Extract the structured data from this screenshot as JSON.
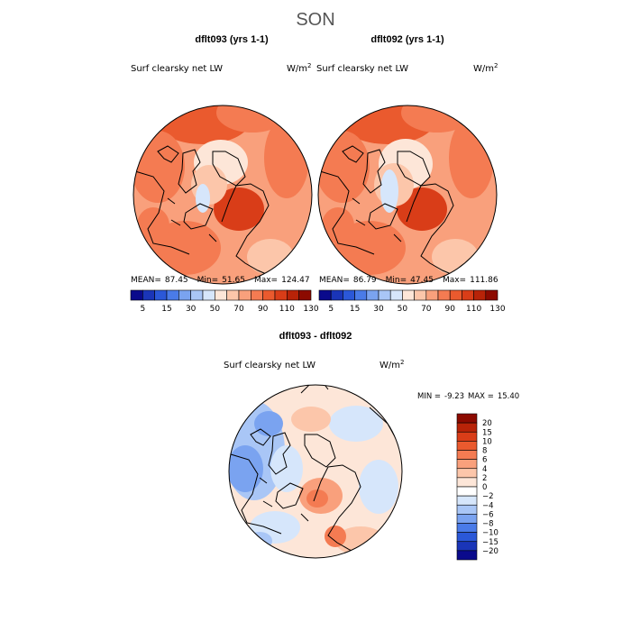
{
  "page_title": "SON",
  "chart_data": [
    {
      "type": "heatmap",
      "projection": "north-polar-stereographic",
      "title": "dflt093 (yrs 1-1)",
      "field_label": "Surf clearsky net LW",
      "units": "W/m",
      "units_power": "2",
      "stats": {
        "mean_label": "MEAN=",
        "mean": "87.45",
        "min_label": "Min=",
        "min": "51.65",
        "max_label": "Max=",
        "max": "124.47"
      },
      "colorbar": {
        "levels": [
          5,
          10,
          15,
          20,
          30,
          40,
          50,
          60,
          70,
          80,
          90,
          100,
          110,
          120,
          130
        ],
        "tick_labels": [
          "5",
          "15",
          "30",
          "50",
          "70",
          "90",
          "110",
          "130"
        ],
        "colors": [
          "#0a0a8c",
          "#1a35b8",
          "#2b58d8",
          "#4a7be8",
          "#7aa3f0",
          "#a9c6f6",
          "#d6e6fb",
          "#fde6d8",
          "#fcc6aa",
          "#f9a07c",
          "#f47b52",
          "#ea5a2e",
          "#d93d18",
          "#b82308",
          "#8c0a00"
        ]
      }
    },
    {
      "type": "heatmap",
      "projection": "north-polar-stereographic",
      "title": "dflt092 (yrs 1-1)",
      "field_label": "Surf clearsky net LW",
      "units": "W/m",
      "units_power": "2",
      "stats": {
        "mean_label": "MEAN=",
        "mean": "86.79",
        "min_label": "Min=",
        "min": "47.45",
        "max_label": "Max=",
        "max": "111.86"
      },
      "colorbar": {
        "levels": [
          5,
          10,
          15,
          20,
          30,
          40,
          50,
          60,
          70,
          80,
          90,
          100,
          110,
          120,
          130
        ],
        "tick_labels": [
          "5",
          "15",
          "30",
          "50",
          "70",
          "90",
          "110",
          "130"
        ],
        "colors": [
          "#0a0a8c",
          "#1a35b8",
          "#2b58d8",
          "#4a7be8",
          "#7aa3f0",
          "#a9c6f6",
          "#d6e6fb",
          "#fde6d8",
          "#fcc6aa",
          "#f9a07c",
          "#f47b52",
          "#ea5a2e",
          "#d93d18",
          "#b82308",
          "#8c0a00"
        ]
      }
    },
    {
      "type": "heatmap",
      "projection": "north-polar-stereographic",
      "title": "dflt093 - dflt092",
      "field_label": "Surf clearsky net LW",
      "units": "W/m",
      "units_power": "2",
      "stats": {
        "min_label": "MIN =",
        "min": "-9.23",
        "max_label": "MAX =",
        "max": "15.40"
      },
      "colorbar": {
        "orientation": "vertical",
        "tick_labels": [
          "20",
          "15",
          "10",
          "8",
          "6",
          "4",
          "2",
          "0",
          "−2",
          "−4",
          "−6",
          "−8",
          "−10",
          "−15",
          "−20"
        ],
        "colors": [
          "#8c0a00",
          "#b82308",
          "#d93d18",
          "#ea5a2e",
          "#f47b52",
          "#f9a07c",
          "#fcc6aa",
          "#fde6d8",
          "#ffffff",
          "#d6e6fb",
          "#a9c6f6",
          "#7aa3f0",
          "#4a7be8",
          "#2b58d8",
          "#1a35b8",
          "#0a0a8c"
        ]
      }
    }
  ]
}
